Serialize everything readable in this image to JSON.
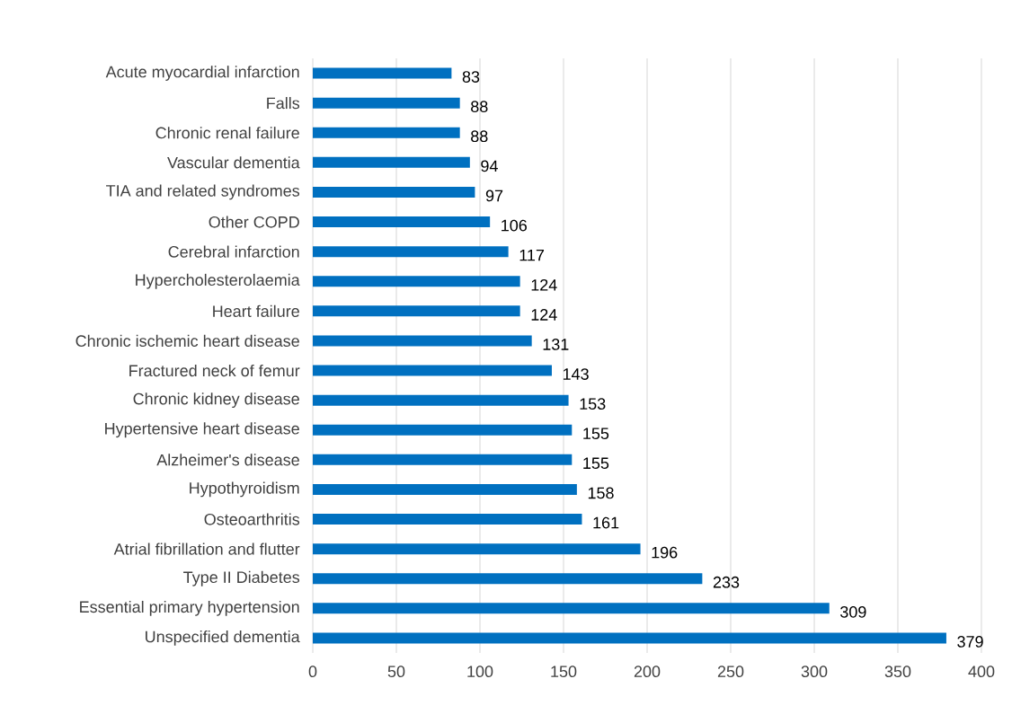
{
  "chart_data": {
    "type": "bar",
    "orientation": "horizontal",
    "categories": [
      "Acute myocardial infarction",
      "Falls",
      "Chronic renal failure",
      "Vascular dementia",
      "TIA and related syndromes",
      "Other COPD",
      "Cerebral infarction",
      "Hypercholesterolaemia",
      "Heart failure",
      "Chronic ischemic heart disease",
      "Fractured neck of femur",
      "Chronic kidney disease",
      "Hypertensive heart disease",
      "Alzheimer's disease",
      "Hypothyroidism",
      "Osteoarthritis",
      "Atrial fibrillation and flutter",
      "Type II Diabetes",
      "Essential primary hypertension",
      "Unspecified dementia"
    ],
    "values": [
      83,
      88,
      88,
      94,
      97,
      106,
      117,
      124,
      124,
      131,
      143,
      153,
      155,
      155,
      158,
      161,
      196,
      233,
      309,
      379
    ],
    "color": "#0070c0",
    "data_labels": true,
    "grid": "x",
    "xlim": [
      0,
      400
    ],
    "xticks": [
      0,
      50,
      100,
      150,
      200,
      250,
      300,
      350,
      400
    ]
  }
}
